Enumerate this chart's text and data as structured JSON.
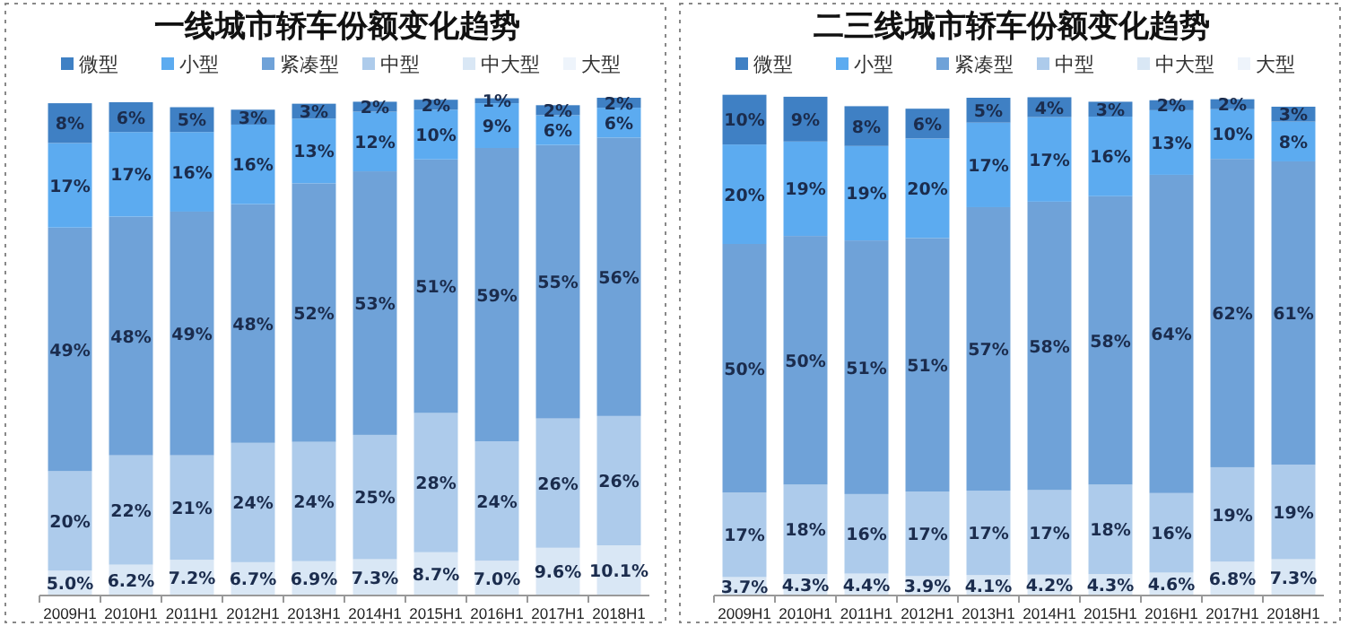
{
  "chart_data": [
    {
      "type": "bar",
      "title": "一线城市轿车份额变化趋势",
      "stacked": true,
      "categories": [
        "2009H1",
        "2010H1",
        "2011H1",
        "2012H1",
        "2013H1",
        "2014H1",
        "2015H1",
        "2016H1",
        "2017H1",
        "2018H1"
      ],
      "ylim": [
        0,
        101
      ],
      "tick_labels": "x",
      "legend": "top",
      "series": [
        {
          "name": "大型",
          "color": "#eef4fb",
          "values": [
            null,
            null,
            null,
            null,
            null,
            null,
            null,
            null,
            null,
            null
          ]
        },
        {
          "name": "中大型",
          "color": "#d9e7f5",
          "values": [
            5.0,
            6.2,
            7.2,
            6.7,
            6.9,
            7.3,
            8.7,
            7.0,
            9.6,
            10.1
          ],
          "value_labels": [
            "5.0%",
            "6.2%",
            "7.2%",
            "6.7%",
            "6.9%",
            "7.3%",
            "8.7%",
            "7.0%",
            "9.6%",
            "10.1%"
          ]
        },
        {
          "name": "中型",
          "color": "#adcbeb",
          "values": [
            20,
            22,
            21,
            24,
            24,
            25,
            28,
            24,
            26,
            26
          ],
          "value_labels": [
            "20%",
            "22%",
            "21%",
            "24%",
            "24%",
            "25%",
            "28%",
            "24%",
            "26%",
            "26%"
          ]
        },
        {
          "name": "紧凑型",
          "color": "#6fa2d8",
          "values": [
            49,
            48,
            49,
            48,
            52,
            53,
            51,
            59,
            55,
            56
          ],
          "value_labels": [
            "49%",
            "48%",
            "49%",
            "48%",
            "52%",
            "53%",
            "51%",
            "59%",
            "55%",
            "56%"
          ]
        },
        {
          "name": "小型",
          "color": "#5cabf0",
          "values": [
            17,
            17,
            16,
            16,
            13,
            12,
            10,
            9,
            6,
            6
          ],
          "value_labels": [
            "17%",
            "17%",
            "16%",
            "16%",
            "13%",
            "12%",
            "10%",
            "9%",
            "6%",
            "6%"
          ]
        },
        {
          "name": "微型",
          "color": "#3f80c4",
          "values": [
            8,
            6,
            5,
            3,
            3,
            2,
            2,
            1,
            2,
            2
          ],
          "value_labels": [
            "8%",
            "6%",
            "5%",
            "3%",
            "3%",
            "2%",
            "2%",
            "1%",
            "2%",
            "2%"
          ]
        }
      ]
    },
    {
      "type": "bar",
      "title": "二三线城市轿车份额变化趋势",
      "stacked": true,
      "categories": [
        "2009H1",
        "2010H1",
        "2011H1",
        "2012H1",
        "2013H1",
        "2014H1",
        "2015H1",
        "2016H1",
        "2017H1",
        "2018H1"
      ],
      "ylim": [
        0,
        101
      ],
      "tick_labels": "x",
      "legend": "top",
      "series": [
        {
          "name": "大型",
          "color": "#eef4fb",
          "values": [
            null,
            null,
            null,
            null,
            null,
            null,
            null,
            null,
            null,
            null
          ]
        },
        {
          "name": "中大型",
          "color": "#d9e7f5",
          "values": [
            3.7,
            4.3,
            4.4,
            3.9,
            4.1,
            4.2,
            4.3,
            4.6,
            6.8,
            7.3
          ],
          "value_labels": [
            "3.7%",
            "4.3%",
            "4.4%",
            "3.9%",
            "4.1%",
            "4.2%",
            "4.3%",
            "4.6%",
            "6.8%",
            "7.3%"
          ]
        },
        {
          "name": "中型",
          "color": "#adcbeb",
          "values": [
            17,
            18,
            16,
            17,
            17,
            17,
            18,
            16,
            19,
            19
          ],
          "value_labels": [
            "17%",
            "18%",
            "16%",
            "17%",
            "17%",
            "17%",
            "18%",
            "16%",
            "19%",
            "19%"
          ]
        },
        {
          "name": "紧凑型",
          "color": "#6fa2d8",
          "values": [
            50,
            50,
            51,
            51,
            57,
            58,
            58,
            64,
            62,
            61
          ],
          "value_labels": [
            "50%",
            "50%",
            "51%",
            "51%",
            "57%",
            "58%",
            "58%",
            "64%",
            "62%",
            "61%"
          ]
        },
        {
          "name": "小型",
          "color": "#5cabf0",
          "values": [
            20,
            19,
            19,
            20,
            17,
            17,
            16,
            13,
            10,
            8
          ],
          "value_labels": [
            "20%",
            "19%",
            "19%",
            "20%",
            "17%",
            "17%",
            "16%",
            "13%",
            "10%",
            "8%"
          ]
        },
        {
          "name": "微型",
          "color": "#3f80c4",
          "values": [
            10,
            9,
            8,
            6,
            5,
            4,
            3,
            2,
            2,
            3
          ],
          "value_labels": [
            "10%",
            "9%",
            "8%",
            "6%",
            "5%",
            "4%",
            "3%",
            "2%",
            "2%",
            "3%"
          ]
        }
      ]
    }
  ]
}
